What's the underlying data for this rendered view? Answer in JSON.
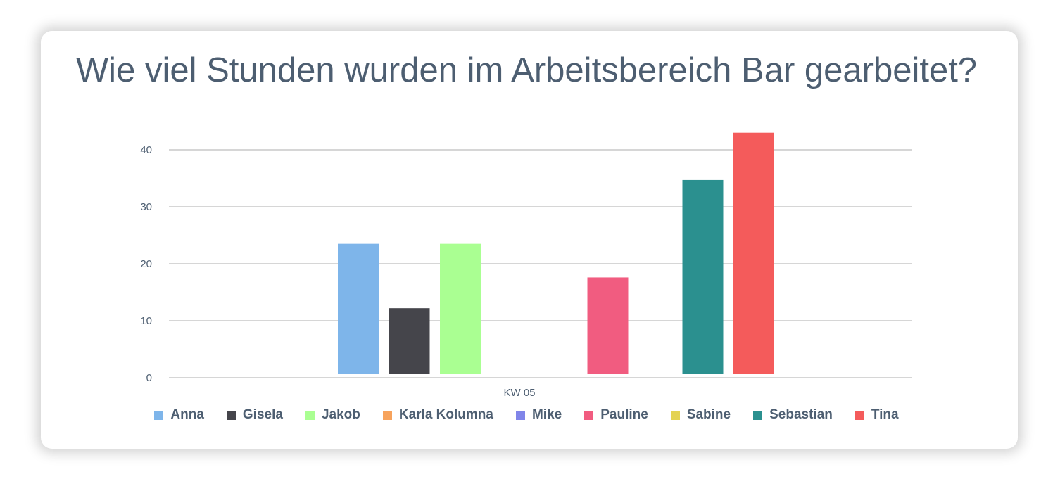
{
  "chart_data": {
    "type": "bar",
    "title": "Wie viel Stunden wurden im Arbeitsbereich Bar gearbeitet?",
    "categories": [
      "KW 05"
    ],
    "xlabel": "",
    "ylabel": "",
    "ylim": [
      0,
      45
    ],
    "yticks": [
      0,
      10,
      20,
      30,
      40
    ],
    "grid": true,
    "legend": "bottom",
    "series": [
      {
        "name": "Anna",
        "values": [
          23.5
        ],
        "color": "#7eb5ea"
      },
      {
        "name": "Gisela",
        "values": [
          12.2
        ],
        "color": "#45454b"
      },
      {
        "name": "Jakob",
        "values": [
          23.5
        ],
        "color": "#aaff92"
      },
      {
        "name": "Karla Kolumna",
        "values": [
          0
        ],
        "color": "#f7a35c"
      },
      {
        "name": "Mike",
        "values": [
          0
        ],
        "color": "#8085e9"
      },
      {
        "name": "Pauline",
        "values": [
          17.6
        ],
        "color": "#f15c80"
      },
      {
        "name": "Sabine",
        "values": [
          0
        ],
        "color": "#e4d354"
      },
      {
        "name": "Sebastian",
        "values": [
          34.7
        ],
        "color": "#2b908f"
      },
      {
        "name": "Tina",
        "values": [
          43
        ],
        "color": "#f45b5b"
      }
    ]
  }
}
